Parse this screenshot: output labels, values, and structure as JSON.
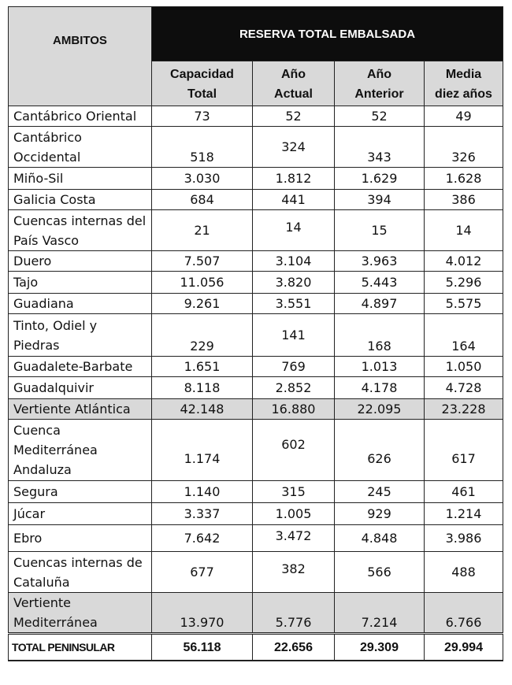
{
  "header": {
    "ambitos": "AMBITOS",
    "reserva": "RESERVA TOTAL EMBALSADA",
    "capacidad_l1": "Capacidad",
    "capacidad_l2": "Total",
    "actual_l1": "Año",
    "actual_l2": "Actual",
    "anterior_l1": "Año",
    "anterior_l2": "Anterior",
    "media_l1": "Media",
    "media_l2": "diez años"
  },
  "rows": [
    {
      "lines": [
        "Cantábrico Oriental"
      ],
      "capacidad": "73",
      "actual": "52",
      "anterior": "52",
      "media": "49"
    },
    {
      "lines": [
        "Cantábrico",
        "Occidental"
      ],
      "capacidad": "518",
      "actual": "324",
      "anterior": "343",
      "media": "326"
    },
    {
      "lines": [
        "Miño-Sil"
      ],
      "capacidad": "3.030",
      "actual": "1.812",
      "anterior": "1.629",
      "media": "1.628"
    },
    {
      "lines": [
        "Galicia Costa"
      ],
      "capacidad": "684",
      "actual": "441",
      "anterior": "394",
      "media": "386"
    },
    {
      "lines": [
        "Cuencas internas del",
        "País Vasco"
      ],
      "capacidad": "21",
      "actual": "14",
      "anterior": "15",
      "media": "14"
    },
    {
      "lines": [
        "Duero"
      ],
      "capacidad": "7.507",
      "actual": "3.104",
      "anterior": "3.963",
      "media": "4.012"
    },
    {
      "lines": [
        "Tajo"
      ],
      "capacidad": "11.056",
      "actual": "3.820",
      "anterior": "5.443",
      "media": "5.296"
    },
    {
      "lines": [
        "Guadiana"
      ],
      "capacidad": "9.261",
      "actual": "3.551",
      "anterior": "4.897",
      "media": "5.575"
    },
    {
      "lines": [
        "Tinto, Odiel y",
        "Piedras"
      ],
      "capacidad": "229",
      "actual": "141",
      "anterior": "168",
      "media": "164"
    },
    {
      "lines": [
        "Guadalete-Barbate"
      ],
      "capacidad": "1.651",
      "actual": "769",
      "anterior": "1.013",
      "media": "1.050"
    },
    {
      "lines": [
        "Guadalquivir"
      ],
      "capacidad": "8.118",
      "actual": "2.852",
      "anterior": "4.178",
      "media": "4.728"
    },
    {
      "lines": [
        "Vertiente Atlántica"
      ],
      "capacidad": "42.148",
      "actual": "16.880",
      "anterior": "22.095",
      "media": "23.228"
    },
    {
      "lines": [
        "Cuenca",
        "Mediterránea",
        "Andaluza"
      ],
      "capacidad": "1.174",
      "actual": "602",
      "anterior": "626",
      "media": "617"
    },
    {
      "lines": [
        "Segura"
      ],
      "capacidad": "1.140",
      "actual": "315",
      "anterior": "245",
      "media": "461"
    },
    {
      "lines": [
        "Júcar"
      ],
      "capacidad": "3.337",
      "actual": "1.005",
      "anterior": "929",
      "media": "1.214"
    },
    {
      "lines": [
        "Ebro"
      ],
      "capacidad": "7.642",
      "actual": "3.472",
      "anterior": "4.848",
      "media": "3.986"
    },
    {
      "lines": [
        "Cuencas internas de",
        "Cataluña"
      ],
      "capacidad": "677",
      "actual": "382",
      "anterior": "566",
      "media": "488"
    },
    {
      "lines": [
        "Vertiente",
        "Mediterránea"
      ],
      "capacidad": "13.970",
      "actual": "5.776",
      "anterior": "7.214",
      "media": "6.766"
    }
  ],
  "total": {
    "label": "TOTAL PENINSULAR",
    "capacidad": "56.118",
    "actual": "22.656",
    "anterior": "29.309",
    "media": "29.994"
  }
}
